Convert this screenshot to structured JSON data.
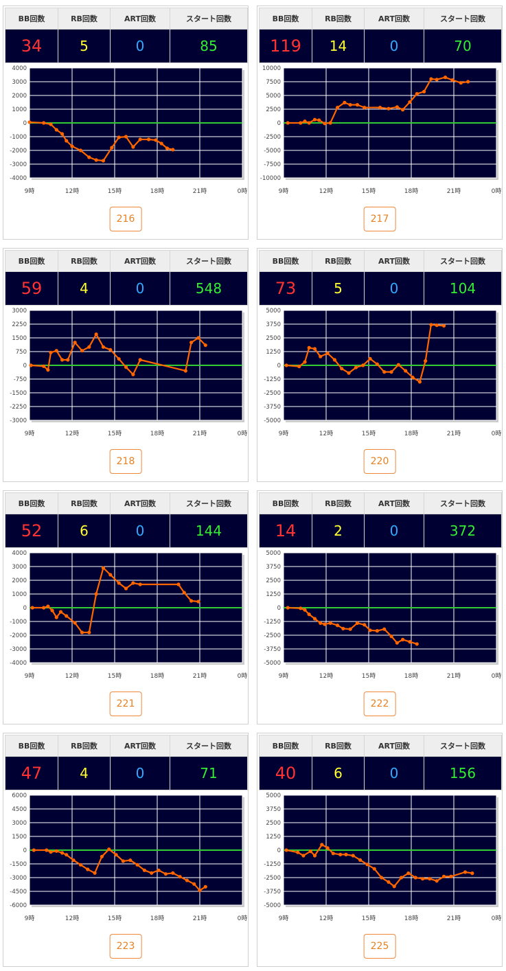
{
  "header_labels": {
    "bb": "BB回数",
    "rb": "RB回数",
    "art": "ART回数",
    "start": "スタート回数"
  },
  "colors": {
    "plot_bg": "#000033",
    "line": "#ff6600",
    "zero_line": "#33cc33",
    "bb": "#ff3333",
    "rb": "#ffff33",
    "art": "#33aaff",
    "start": "#33ee33",
    "machine_button": "#e8801f"
  },
  "machines": [
    {
      "bb": "34",
      "rb": "5",
      "art": "0",
      "start": "85",
      "machine_no": "216"
    },
    {
      "bb": "119",
      "rb": "14",
      "art": "0",
      "start": "70",
      "machine_no": "217"
    },
    {
      "bb": "59",
      "rb": "4",
      "art": "0",
      "start": "548",
      "machine_no": "218"
    },
    {
      "bb": "73",
      "rb": "5",
      "art": "0",
      "start": "104",
      "machine_no": "220"
    },
    {
      "bb": "52",
      "rb": "6",
      "art": "0",
      "start": "144",
      "machine_no": "221"
    },
    {
      "bb": "14",
      "rb": "2",
      "art": "0",
      "start": "372",
      "machine_no": "222"
    },
    {
      "bb": "47",
      "rb": "4",
      "art": "0",
      "start": "71",
      "machine_no": "223"
    },
    {
      "bb": "40",
      "rb": "6",
      "art": "0",
      "start": "156",
      "machine_no": "225"
    }
  ],
  "chart_data": [
    {
      "type": "line",
      "x_ticks": [
        "9時",
        "12時",
        "15時",
        "18時",
        "21時",
        "0時"
      ],
      "x_range": [
        9,
        24
      ],
      "y_range": [
        -4000,
        4000
      ],
      "y_ticks": [
        "4000",
        "3000",
        "2000",
        "1000",
        "0",
        "-1000",
        "-2000",
        "-3000",
        "-4000"
      ],
      "x": [
        9,
        10,
        10.5,
        10.9,
        11.3,
        11.6,
        12.0,
        12.6,
        13.2,
        13.7,
        14.2,
        14.8,
        15.3,
        15.8,
        16.3,
        16.8,
        17.4,
        17.9,
        18.3,
        18.7,
        19.1
      ],
      "y": [
        50,
        0,
        -100,
        -500,
        -800,
        -1300,
        -1700,
        -2000,
        -2500,
        -2700,
        -2750,
        -1800,
        -1050,
        -1000,
        -1750,
        -1200,
        -1200,
        -1250,
        -1500,
        -1850,
        -1950
      ]
    },
    {
      "type": "line",
      "x_ticks": [
        "9時",
        "12時",
        "15時",
        "18時",
        "21時",
        "0時"
      ],
      "x_range": [
        9,
        24
      ],
      "y_range": [
        -10000,
        10000
      ],
      "y_ticks": [
        "10000",
        "7500",
        "5000",
        "2500",
        "0",
        "-2500",
        "-5000",
        "-7500",
        "-10000"
      ],
      "x": [
        9.3,
        10.2,
        10.5,
        10.8,
        11.2,
        11.5,
        11.9,
        12.3,
        12.8,
        13.3,
        13.7,
        14.2,
        14.7,
        15.8,
        16.4,
        17.0,
        17.4,
        17.9,
        18.4,
        18.9,
        19.4,
        19.8,
        20.4,
        20.9,
        21.5,
        22.0
      ],
      "y": [
        0,
        0,
        300,
        0,
        600,
        500,
        -100,
        0,
        2800,
        3700,
        3300,
        3300,
        2800,
        2800,
        2600,
        2900,
        2400,
        3800,
        5300,
        5700,
        8000,
        7900,
        8300,
        7800,
        7300,
        7500
      ]
    },
    {
      "type": "line",
      "x_ticks": [
        "9時",
        "12時",
        "15時",
        "18時",
        "21時",
        "0時"
      ],
      "x_range": [
        9,
        24
      ],
      "y_range": [
        -3000,
        3000
      ],
      "y_ticks": [
        "3000",
        "2250",
        "1500",
        "750",
        "0",
        "-750",
        "-1500",
        "-2250",
        "-3000"
      ],
      "x": [
        9.1,
        10,
        10.3,
        10.5,
        10.9,
        11.3,
        11.7,
        12.2,
        12.7,
        13.2,
        13.7,
        14.2,
        14.7,
        15.3,
        15.8,
        16.3,
        16.8,
        20.0,
        20.4,
        20.9,
        21.4
      ],
      "y": [
        0,
        -50,
        -250,
        700,
        800,
        300,
        300,
        1250,
        800,
        1000,
        1700,
        1000,
        850,
        350,
        -100,
        -500,
        300,
        -300,
        1250,
        1500,
        1100
      ]
    },
    {
      "type": "line",
      "x_ticks": [
        "9時",
        "12時",
        "15時",
        "18時",
        "21時",
        "0時"
      ],
      "x_range": [
        9,
        24
      ],
      "y_range": [
        -5000,
        5000
      ],
      "y_ticks": [
        "5000",
        "3750",
        "2500",
        "1250",
        "0",
        "-1250",
        "-2500",
        "-3750",
        "-5000"
      ],
      "x": [
        9.2,
        10.1,
        10.5,
        10.8,
        11.2,
        11.6,
        12.1,
        12.6,
        13.1,
        13.6,
        14.1,
        14.6,
        15.1,
        15.6,
        16.1,
        16.6,
        17.1,
        17.6,
        18.1,
        18.6,
        19.0,
        19.4,
        19.8,
        20.3
      ],
      "y": [
        0,
        -100,
        300,
        1600,
        1500,
        800,
        1100,
        500,
        -300,
        -700,
        -200,
        0,
        600,
        100,
        -600,
        -600,
        50,
        -500,
        -1100,
        -1500,
        400,
        3700,
        3650,
        3600
      ]
    },
    {
      "type": "line",
      "x_ticks": [
        "9時",
        "12時",
        "15時",
        "18時",
        "21時",
        "0時"
      ],
      "x_range": [
        9,
        24
      ],
      "y_range": [
        -4000,
        4000
      ],
      "y_ticks": [
        "4000",
        "3000",
        "2000",
        "1000",
        "0",
        "-1000",
        "-2000",
        "-3000",
        "-4000"
      ],
      "x": [
        9.2,
        10,
        10.3,
        10.6,
        10.9,
        11.2,
        11.6,
        12.2,
        12.7,
        13.2,
        13.7,
        14.2,
        14.7,
        15.3,
        15.8,
        16.3,
        16.8,
        19.5,
        19.9,
        20.4,
        20.9
      ],
      "y": [
        0,
        0,
        100,
        -200,
        -700,
        -300,
        -600,
        -1100,
        -1800,
        -1800,
        1000,
        2900,
        2400,
        1800,
        1400,
        1800,
        1700,
        1700,
        1100,
        500,
        450
      ]
    },
    {
      "type": "line",
      "x_ticks": [
        "9時",
        "12時",
        "15時",
        "18時",
        "21時",
        "0時"
      ],
      "x_range": [
        9,
        24
      ],
      "y_range": [
        -5000,
        5000
      ],
      "y_ticks": [
        "5000",
        "3750",
        "2500",
        "1250",
        "0",
        "-1250",
        "-2500",
        "-3750",
        "-5000"
      ],
      "x": [
        9.3,
        10.2,
        10.5,
        10.8,
        11.2,
        11.6,
        11.9,
        12.3,
        12.8,
        13.2,
        13.7,
        14.2,
        14.7,
        15.1,
        15.6,
        16.1,
        16.6,
        17.0,
        17.4,
        17.9,
        18.4
      ],
      "y": [
        0,
        -50,
        -200,
        -600,
        -1000,
        -1400,
        -1500,
        -1400,
        -1600,
        -1900,
        -1950,
        -1400,
        -1550,
        -2050,
        -2100,
        -1950,
        -2600,
        -3200,
        -2900,
        -3100,
        -3300
      ]
    },
    {
      "type": "line",
      "x_ticks": [
        "9時",
        "12時",
        "15時",
        "18時",
        "21時",
        "0時"
      ],
      "x_range": [
        9,
        24
      ],
      "y_range": [
        -6000,
        6000
      ],
      "y_ticks": [
        "6000",
        "4500",
        "3000",
        "1500",
        "0",
        "-1500",
        "-3000",
        "-4500",
        "-6000"
      ],
      "x": [
        9.3,
        10.2,
        10.5,
        10.9,
        11.3,
        11.6,
        12.1,
        12.6,
        13.1,
        13.6,
        14.1,
        14.6,
        15.1,
        15.6,
        16.1,
        16.6,
        17.1,
        17.6,
        18.1,
        18.6,
        19.1,
        19.6,
        20.1,
        20.6,
        21.0,
        21.4
      ],
      "y": [
        0,
        0,
        -200,
        -100,
        -300,
        -500,
        -1100,
        -1600,
        -2100,
        -2500,
        -700,
        100,
        -500,
        -1200,
        -1100,
        -1600,
        -2200,
        -2500,
        -2200,
        -2600,
        -2500,
        -2900,
        -3300,
        -3700,
        -4400,
        -4000
      ]
    },
    {
      "type": "line",
      "x_ticks": [
        "9時",
        "12時",
        "15時",
        "18時",
        "21時",
        "0時"
      ],
      "x_range": [
        9,
        24
      ],
      "y_range": [
        -5000,
        5000
      ],
      "y_ticks": [
        "5000",
        "3750",
        "2500",
        "1250",
        "0",
        "-1250",
        "-2500",
        "-3750",
        "-5000"
      ],
      "x": [
        9.2,
        10,
        10.4,
        10.9,
        11.2,
        11.7,
        12.1,
        12.5,
        13.0,
        13.4,
        13.9,
        14.4,
        14.9,
        15.4,
        15.9,
        16.4,
        16.8,
        17.3,
        17.8,
        18.3,
        18.8,
        19.3,
        19.8,
        20.3,
        20.8,
        21.8,
        22.3
      ],
      "y": [
        0,
        -200,
        -500,
        -100,
        -500,
        500,
        200,
        -300,
        -400,
        -400,
        -500,
        -900,
        -1300,
        -1700,
        -2500,
        -2900,
        -3300,
        -2500,
        -2100,
        -2500,
        -2600,
        -2600,
        -2800,
        -2400,
        -2400,
        -2000,
        -2100
      ]
    }
  ]
}
